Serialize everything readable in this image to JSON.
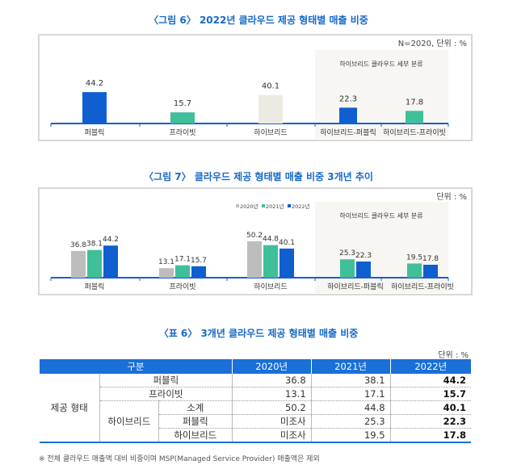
{
  "chart_data": [
    {
      "type": "bar",
      "title": "〈그림 6〉 2022년 클라우드 제공 형태별 매출 비중",
      "note": "N=2020, 단위 : %",
      "group_label": "하이브리드 클라우드 세부 분류",
      "categories": [
        "퍼블릭",
        "프라이빗",
        "하이브리드",
        "하이브리드-퍼블릭",
        "하이브리드-프라이빗"
      ],
      "values": [
        44.2,
        15.7,
        40.1,
        22.3,
        17.8
      ],
      "colors": [
        "#0f5fd0",
        "#3fbf9a",
        "#ecebe3",
        "#0f5fd0",
        "#3fbf9a"
      ]
    },
    {
      "type": "bar",
      "title": "〈그림 7〉 클라우드 제공 형태별 매출 비중 3개년 추이",
      "note": "단위 : %",
      "group_label": "하이브리드 클라우드 세부 분류",
      "legend": "top-center",
      "categories": [
        "퍼블릭",
        "프라이빗",
        "하이브리드",
        "하이브리드-퍼블릭",
        "하이브리드-프라이빗"
      ],
      "series": [
        {
          "name": "2020년",
          "color": "#bdbdbd",
          "values": [
            36.8,
            13.1,
            50.2,
            null,
            null
          ]
        },
        {
          "name": "2021년",
          "color": "#3fbf9a",
          "values": [
            38.1,
            17.1,
            44.8,
            25.3,
            19.5
          ]
        },
        {
          "name": "2022년",
          "color": "#0f5fd0",
          "values": [
            44.2,
            15.7,
            40.1,
            22.3,
            17.8
          ]
        }
      ]
    }
  ],
  "table": {
    "title": "〈표 6〉 3개년 클라우드 제공 형태별 매출 비중",
    "unit": "단위 : %",
    "headers": [
      "구분",
      "2020년",
      "2021년",
      "2022년"
    ],
    "group": "제공 형태",
    "hybrid": "하이브리드",
    "rows": [
      {
        "label": "퍼블릭",
        "v": [
          "36.8",
          "38.1",
          "44.2"
        ]
      },
      {
        "label": "프라이빗",
        "v": [
          "13.1",
          "17.1",
          "15.7"
        ]
      },
      {
        "label": "소계",
        "v": [
          "50.2",
          "44.8",
          "40.1"
        ]
      },
      {
        "label": "퍼블릭",
        "v": [
          "미조사",
          "25.3",
          "22.3"
        ]
      },
      {
        "label": "하이브리드",
        "v": [
          "미조사",
          "19.5",
          "17.8"
        ]
      }
    ],
    "footnote": "※ 전체 클라우드 매출액 대비 비중이며 MSP(Managed Service Provider) 매출액은 제외"
  }
}
